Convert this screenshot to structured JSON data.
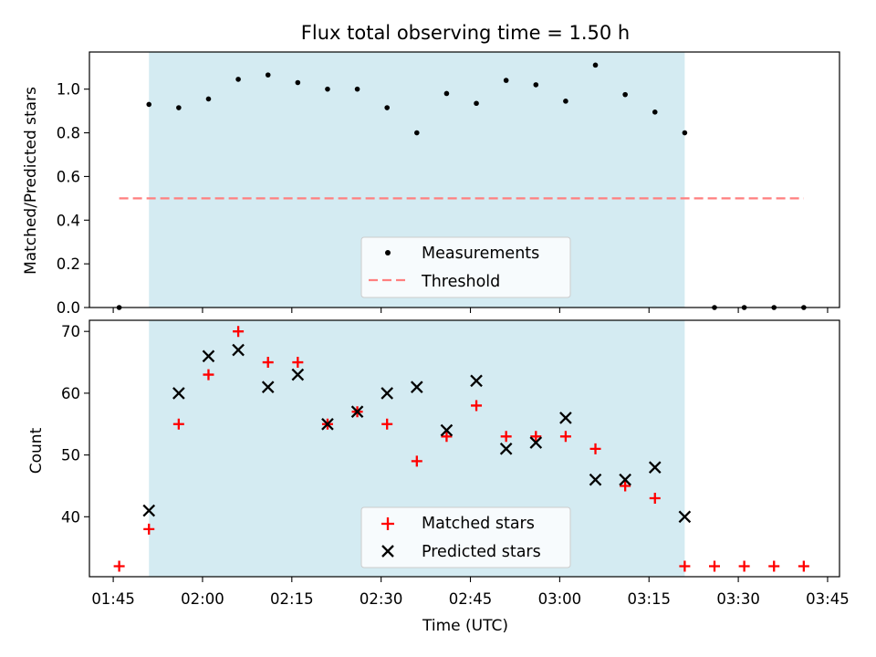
{
  "chart_data": [
    {
      "type": "scatter",
      "title": "Flux total observing time = 1.50 h",
      "ylabel": "Matched/Predicted stars",
      "xlabel": "",
      "ylim": [
        0,
        1.17
      ],
      "yticks": [
        "0.0",
        "0.2",
        "0.4",
        "0.6",
        "0.8",
        "1.0"
      ],
      "legend_position": "lower center",
      "shaded_x_range": [
        "01:51",
        "03:21"
      ],
      "threshold": {
        "name": "Threshold",
        "y": 0.5,
        "x_range": [
          "01:46",
          "03:41"
        ],
        "color": "#ff7f7f",
        "style": "dashed"
      },
      "series": [
        {
          "name": "Measurements",
          "marker": "dot",
          "color": "#000000",
          "x": [
            "01:46",
            "01:51",
            "01:56",
            "02:01",
            "02:06",
            "02:11",
            "02:16",
            "02:21",
            "02:26",
            "02:31",
            "02:36",
            "02:41",
            "02:46",
            "02:51",
            "02:56",
            "03:01",
            "03:06",
            "03:11",
            "03:16",
            "03:21",
            "03:26",
            "03:31",
            "03:36",
            "03:41"
          ],
          "y": [
            0.0,
            0.93,
            0.915,
            0.955,
            1.045,
            1.065,
            1.03,
            1.0,
            1.0,
            0.915,
            0.8,
            0.98,
            0.935,
            1.04,
            1.02,
            0.945,
            1.11,
            0.975,
            0.895,
            0.8,
            0.0,
            0.0,
            0.0,
            0.0
          ]
        }
      ]
    },
    {
      "type": "scatter",
      "title": "",
      "ylabel": "Count",
      "xlabel": "Time (UTC)",
      "ylim": [
        30.3,
        71.8
      ],
      "yticks": [
        "40",
        "50",
        "60",
        "70"
      ],
      "xticks": [
        "01:45",
        "02:00",
        "02:15",
        "02:30",
        "02:45",
        "03:00",
        "03:15",
        "03:30",
        "03:45"
      ],
      "xlim": [
        "01:41",
        "03:47"
      ],
      "legend_position": "lower center",
      "shaded_x_range": [
        "01:51",
        "03:21"
      ],
      "series": [
        {
          "name": "Matched stars",
          "marker": "plus",
          "color": "#ff0000",
          "x": [
            "01:46",
            "01:51",
            "01:56",
            "02:01",
            "02:06",
            "02:11",
            "02:16",
            "02:21",
            "02:26",
            "02:31",
            "02:36",
            "02:41",
            "02:46",
            "02:51",
            "02:56",
            "03:01",
            "03:06",
            "03:11",
            "03:16",
            "03:21",
            "03:26",
            "03:31",
            "03:36",
            "03:41"
          ],
          "y": [
            32,
            38,
            55,
            63,
            70,
            65,
            65,
            55,
            57,
            55,
            49,
            53,
            58,
            53,
            53,
            53,
            51,
            45,
            43,
            32,
            32,
            32,
            32,
            32
          ]
        },
        {
          "name": "Predicted stars",
          "marker": "x",
          "color": "#000000",
          "x": [
            "01:51",
            "01:56",
            "02:01",
            "02:06",
            "02:11",
            "02:16",
            "02:21",
            "02:26",
            "02:31",
            "02:36",
            "02:41",
            "02:46",
            "02:51",
            "02:56",
            "03:01",
            "03:06",
            "03:11",
            "03:16",
            "03:21"
          ],
          "y": [
            41,
            60,
            66,
            67,
            61,
            63,
            55,
            57,
            60,
            61,
            54,
            62,
            51,
            52,
            56,
            46,
            46,
            48,
            40
          ]
        }
      ]
    }
  ]
}
